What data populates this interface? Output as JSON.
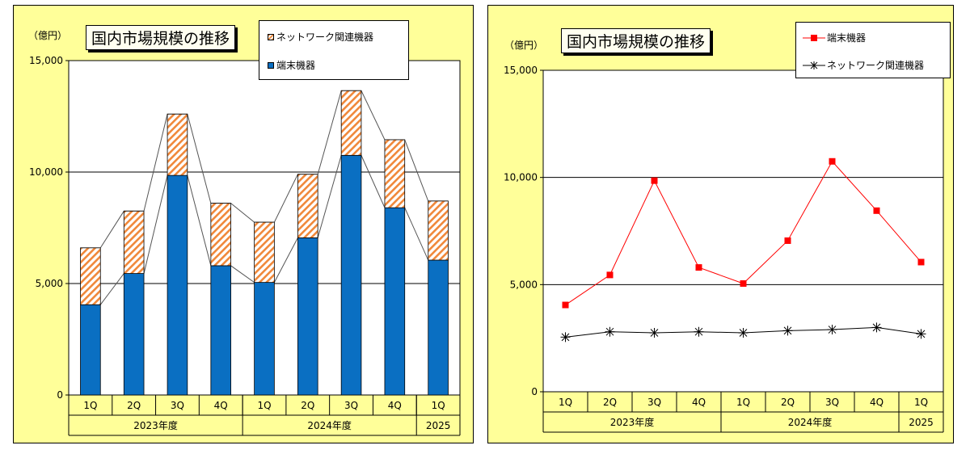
{
  "chart_data": [
    {
      "type": "bar",
      "stacked": true,
      "title": "国内市場規模の推移",
      "unit_label": "（億円）",
      "ylim": [
        0,
        15000
      ],
      "yticks": [
        "0",
        "5,000",
        "10,000",
        "15,000"
      ],
      "yticks_values": [
        0,
        5000,
        10000,
        15000
      ],
      "categories": [
        "1Q",
        "2Q",
        "3Q",
        "4Q",
        "1Q",
        "2Q",
        "3Q",
        "4Q",
        "1Q"
      ],
      "year_groups": [
        {
          "label": "2023年度",
          "span": 4
        },
        {
          "label": "2024年度",
          "span": 4
        },
        {
          "label": "2025",
          "span": 1
        }
      ],
      "series": [
        {
          "name": "端末機器",
          "color": "#0a6fc2",
          "values": [
            4050,
            5450,
            9850,
            5800,
            5050,
            7050,
            10750,
            8400,
            6050
          ]
        },
        {
          "name": "ネットワーク関連機器",
          "color": "#f0883a",
          "pattern": "hatch",
          "values": [
            2550,
            2800,
            2750,
            2800,
            2700,
            2850,
            2900,
            3050,
            2650
          ]
        }
      ],
      "legend": [
        "ネットワーク関連機器",
        "端末機器"
      ],
      "grid": true
    },
    {
      "type": "line",
      "title": "国内市場規模の推移",
      "unit_label": "（億円）",
      "ylim": [
        0,
        15000
      ],
      "yticks": [
        "0",
        "5,000",
        "10,000",
        "15,000"
      ],
      "yticks_values": [
        0,
        5000,
        10000,
        15000
      ],
      "categories": [
        "1Q",
        "2Q",
        "3Q",
        "4Q",
        "1Q",
        "2Q",
        "3Q",
        "4Q",
        "1Q"
      ],
      "year_groups": [
        {
          "label": "2023年度",
          "span": 4
        },
        {
          "label": "2024年度",
          "span": 4
        },
        {
          "label": "2025",
          "span": 1
        }
      ],
      "series": [
        {
          "name": "端末機器",
          "color": "#ff0000",
          "marker": "square",
          "values": [
            4050,
            5450,
            9850,
            5800,
            5050,
            7050,
            10750,
            8450,
            6050
          ]
        },
        {
          "name": "ネットワーク関連機器",
          "color": "#000000",
          "marker": "asterisk",
          "values": [
            2550,
            2800,
            2750,
            2800,
            2750,
            2850,
            2900,
            3000,
            2700
          ]
        }
      ],
      "legend": [
        "端末機器",
        "ネットワーク関連機器"
      ],
      "grid": true
    }
  ]
}
